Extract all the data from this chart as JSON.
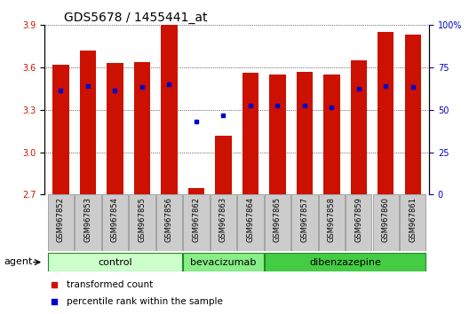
{
  "title": "GDS5678 / 1455441_at",
  "samples": [
    "GSM967852",
    "GSM967853",
    "GSM967854",
    "GSM967855",
    "GSM967856",
    "GSM967862",
    "GSM967863",
    "GSM967864",
    "GSM967865",
    "GSM967857",
    "GSM967858",
    "GSM967859",
    "GSM967860",
    "GSM967861"
  ],
  "bar_values": [
    3.62,
    3.72,
    3.63,
    3.64,
    3.9,
    2.75,
    3.12,
    3.56,
    3.55,
    3.57,
    3.55,
    3.65,
    3.85,
    3.83
  ],
  "dot_values": [
    3.44,
    3.47,
    3.44,
    3.46,
    3.48,
    3.22,
    3.26,
    3.33,
    3.33,
    3.33,
    3.32,
    3.45,
    3.47,
    3.46
  ],
  "ymin": 2.7,
  "ymax": 3.9,
  "yticks": [
    2.7,
    3.0,
    3.3,
    3.6,
    3.9
  ],
  "right_yticks": [
    0,
    25,
    50,
    75,
    100
  ],
  "right_yticklabels": [
    "0",
    "25",
    "50",
    "75",
    "100%"
  ],
  "bar_color": "#cc1100",
  "dot_color": "#0000cc",
  "groups": [
    {
      "label": "control",
      "start": 0,
      "end": 5,
      "color": "#ccffcc"
    },
    {
      "label": "bevacizumab",
      "start": 5,
      "end": 8,
      "color": "#88ee88"
    },
    {
      "label": "dibenzazepine",
      "start": 8,
      "end": 14,
      "color": "#44cc44"
    }
  ],
  "agent_label": "agent",
  "legend": [
    {
      "color": "#cc1100",
      "label": "transformed count"
    },
    {
      "color": "#0000cc",
      "label": "percentile rank within the sample"
    }
  ],
  "bar_width": 0.6,
  "sample_bg": "#cccccc",
  "sample_edge": "#888888",
  "tick_fontsize": 7,
  "title_fontsize": 10,
  "sample_fontsize": 6,
  "group_fontsize": 8,
  "legend_fontsize": 7.5
}
